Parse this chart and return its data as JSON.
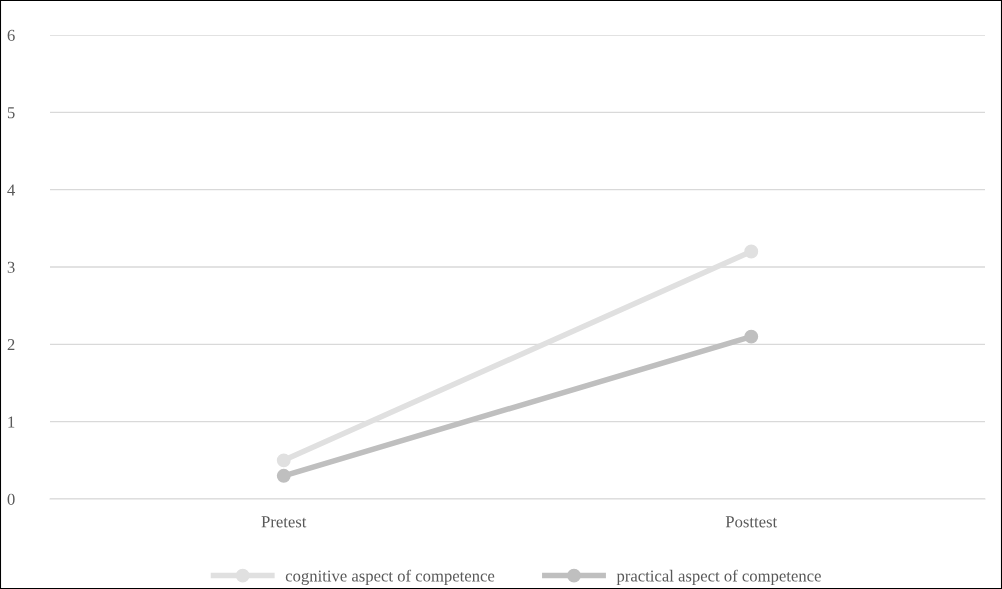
{
  "chart_data": {
    "type": "line",
    "categories": [
      "Pretest",
      "Posttest"
    ],
    "series": [
      {
        "name": "cognitive aspect of competence",
        "color": "#e0e0e0",
        "values": [
          0.5,
          3.2
        ]
      },
      {
        "name": "practical aspect of competence",
        "color": "#bfbfbf",
        "values": [
          0.3,
          2.1
        ]
      }
    ],
    "ylim": [
      0,
      6
    ],
    "yticks": [
      0,
      1,
      2,
      3,
      4,
      5,
      6
    ],
    "grid": "y",
    "legend": "bottom",
    "marker": "circle",
    "line_style": "solid"
  }
}
